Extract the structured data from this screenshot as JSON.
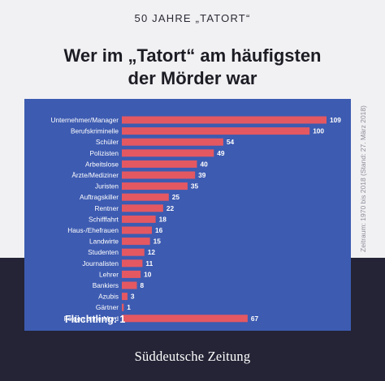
{
  "header": {
    "kicker": "50 JAHRE „TATORT“",
    "title_line1": "Wer im „Tatort“ am häufigsten",
    "title_line2": "der Mörder war"
  },
  "source_note": "Zeitraum: 1970 bis 2018 (Stand: 27. März 2018)",
  "footnote": "Flüchtling: 1",
  "brand": "Süddeutsche Zeitung",
  "colors": {
    "background_top": "#f1f1f3",
    "background_bottom": "#242436",
    "panel": "#3d5bb1",
    "bar": "#e45862"
  },
  "chart_data": {
    "type": "bar",
    "orientation": "horizontal",
    "title": "Wer im „Tatort“ am häufigsten der Mörder war",
    "categories": [
      "Unternehmer/Manager",
      "Berufskriminelle",
      "Schüler",
      "Polizisten",
      "Arbeitslose",
      "Ärzte/Mediziner",
      "Juristen",
      "Auftragskiller",
      "Rentner",
      "Schifffahrt",
      "Haus-/Ehefrauen",
      "Landwirte",
      "Studenten",
      "Journalisten",
      "Lehrer",
      "Bankiers",
      "Azubis",
      "Gärtner",
      "Folgen ohne Mord"
    ],
    "values": [
      109,
      100,
      54,
      49,
      40,
      39,
      35,
      25,
      22,
      18,
      16,
      15,
      12,
      11,
      10,
      8,
      3,
      1,
      67
    ],
    "xlim": [
      0,
      109
    ],
    "grid": false,
    "legend": "none"
  }
}
